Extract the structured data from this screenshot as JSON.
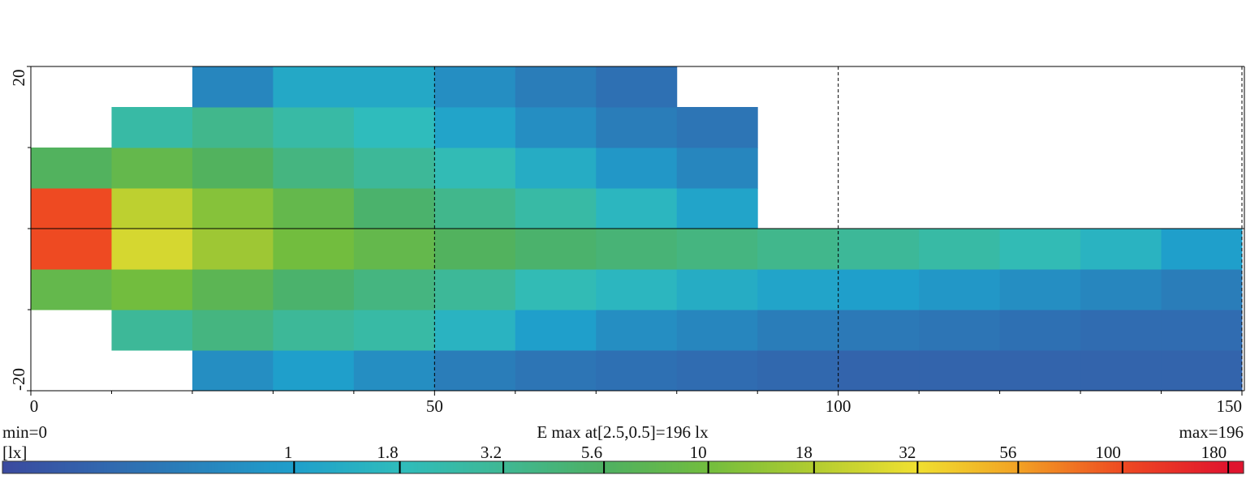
{
  "chart_data": {
    "type": "heatmap",
    "title": "E max at[2.5,0.5]=196 lx",
    "min_label": "min=0",
    "max_label": "max=196",
    "unit_label": "[lx]",
    "x_bins": [
      0,
      10,
      20,
      30,
      40,
      50,
      60,
      70,
      80,
      90,
      100,
      110,
      120,
      130,
      140,
      150
    ],
    "y_bins": [
      -20,
      -15,
      -10,
      -5,
      0,
      5,
      10,
      15,
      20
    ],
    "values": [
      [
        null,
        null,
        0.8,
        1,
        0.8,
        0.6,
        0.5,
        0.45,
        0.4,
        0.35,
        0.3,
        0.3,
        0.3,
        0.3,
        0.3
      ],
      [
        null,
        3,
        4,
        3,
        2.5,
        1.5,
        1,
        0.8,
        0.7,
        0.6,
        0.55,
        0.5,
        0.45,
        0.4,
        0.4
      ],
      [
        8,
        10,
        7,
        5,
        4,
        3,
        2,
        1.6,
        1.3,
        1.1,
        1,
        0.9,
        0.8,
        0.7,
        0.6
      ],
      [
        100,
        25,
        15,
        10,
        8,
        6,
        5,
        4.5,
        4,
        3.5,
        3,
        2.5,
        2,
        1.5,
        1
      ],
      [
        100,
        20,
        12,
        8,
        5,
        3.5,
        2.5,
        1.6,
        1.1,
        null,
        null,
        null,
        null,
        null,
        null
      ],
      [
        6,
        8,
        6,
        4,
        3,
        2,
        1.3,
        0.9,
        0.7,
        null,
        null,
        null,
        null,
        null,
        null
      ],
      [
        null,
        2.5,
        3.5,
        2.5,
        1.8,
        1.1,
        0.8,
        0.6,
        0.5,
        null,
        null,
        null,
        null,
        null,
        null
      ],
      [
        null,
        null,
        0.7,
        1.2,
        1.2,
        0.8,
        0.6,
        0.45,
        null,
        null,
        null,
        null,
        null,
        null,
        null
      ]
    ],
    "xlim": [
      0,
      150
    ],
    "ylim": [
      -20,
      20
    ],
    "xticks": [
      0,
      50,
      100,
      150
    ],
    "x_minor_ticks": [
      10,
      20,
      30,
      40,
      60,
      70,
      80,
      90,
      110,
      120,
      130,
      140
    ],
    "yticks": [
      -20,
      20
    ],
    "y_minor_ticks": [
      -10,
      0,
      10
    ],
    "grid": true,
    "clim": [
      0,
      196
    ],
    "colorbar_ticks": [
      1,
      1.8,
      3.2,
      5.6,
      10,
      18,
      32,
      56,
      100,
      180
    ],
    "colormap": [
      "#3b4a9f",
      "#1f9fcb",
      "#2fbcbc",
      "#3fb894",
      "#4eb062",
      "#72bd3e",
      "#b2cc30",
      "#f0e030",
      "#f2a224",
      "#ee4a22",
      "#e0142e"
    ]
  }
}
